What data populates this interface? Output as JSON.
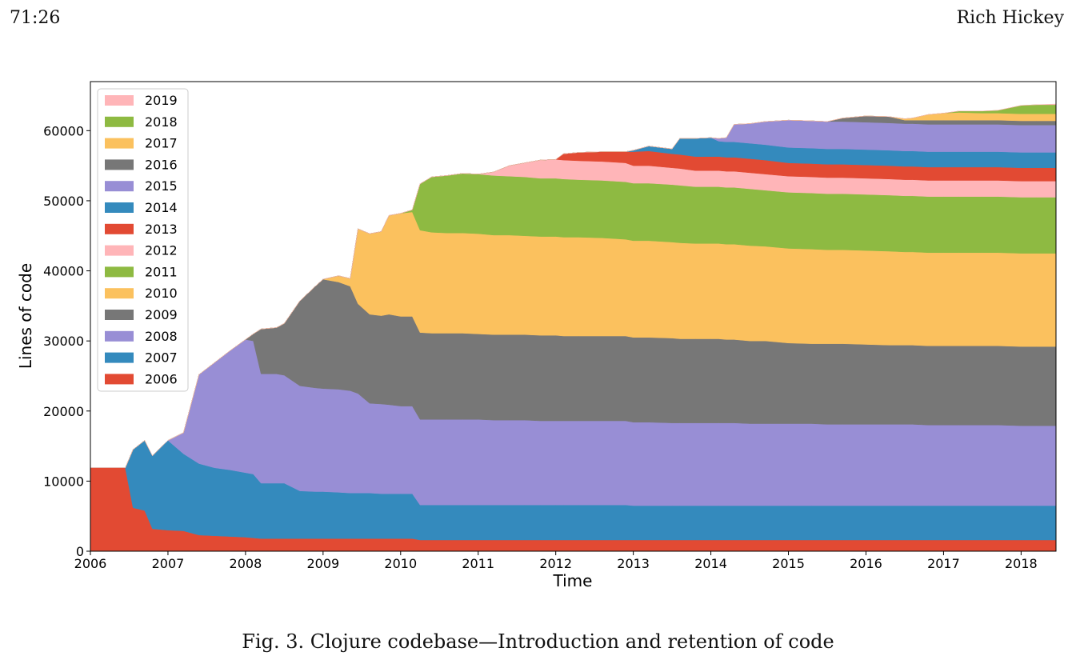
{
  "header": {
    "page_number": "71:26",
    "author": "Rich Hickey"
  },
  "caption": "Fig. 3.  Clojure codebase—Introduction and retention of code",
  "chart_data": {
    "type": "area",
    "stacked": true,
    "xlabel": "Time",
    "ylabel": "Lines of code",
    "xlim": [
      2006,
      2018.45
    ],
    "ylim": [
      0,
      67000
    ],
    "x_ticks": [
      2006,
      2007,
      2008,
      2009,
      2010,
      2011,
      2012,
      2013,
      2014,
      2015,
      2016,
      2017,
      2018
    ],
    "y_ticks": [
      0,
      10000,
      20000,
      30000,
      40000,
      50000,
      60000
    ],
    "legend_position": "top-left",
    "legend_order": [
      "2019",
      "2018",
      "2017",
      "2016",
      "2015",
      "2014",
      "2013",
      "2012",
      "2011",
      "2010",
      "2009",
      "2008",
      "2007",
      "2006"
    ],
    "x": [
      2006.0,
      2006.45,
      2006.55,
      2006.7,
      2006.8,
      2007.0,
      2007.2,
      2007.4,
      2007.6,
      2007.8,
      2008.0,
      2008.1,
      2008.2,
      2008.4,
      2008.5,
      2008.7,
      2008.9,
      2009.0,
      2009.2,
      2009.35,
      2009.45,
      2009.6,
      2009.75,
      2009.85,
      2010.0,
      2010.15,
      2010.25,
      2010.4,
      2010.6,
      2010.8,
      2011.0,
      2011.2,
      2011.4,
      2011.6,
      2011.8,
      2012.0,
      2012.1,
      2012.3,
      2012.6,
      2012.9,
      2013.0,
      2013.2,
      2013.5,
      2013.6,
      2013.8,
      2014.0,
      2014.1,
      2014.2,
      2014.3,
      2014.5,
      2014.7,
      2015.0,
      2015.3,
      2015.5,
      2015.7,
      2016.0,
      2016.3,
      2016.5,
      2016.6,
      2016.8,
      2017.0,
      2017.2,
      2017.5,
      2017.7,
      2018.0,
      2018.2,
      2018.45
    ],
    "colors": {
      "2006": "#e24a33",
      "2007": "#348abd",
      "2008": "#988ed5",
      "2009": "#777777",
      "2010": "#fbc15e",
      "2011": "#8eba42",
      "2012": "#ffb5b8",
      "2013": "#e24a33",
      "2014": "#348abd",
      "2015": "#988ed5",
      "2016": "#777777",
      "2017": "#fbc15e",
      "2018": "#8eba42",
      "2019": "#ffb5b8"
    },
    "series": [
      {
        "name": "2006",
        "values": [
          11900,
          11900,
          6200,
          5800,
          3200,
          3000,
          2900,
          2300,
          2200,
          2100,
          2000,
          1900,
          1800,
          1800,
          1800,
          1800,
          1800,
          1800,
          1800,
          1800,
          1800,
          1800,
          1800,
          1800,
          1800,
          1800,
          1600,
          1600,
          1600,
          1600,
          1600,
          1600,
          1600,
          1600,
          1600,
          1600,
          1600,
          1600,
          1600,
          1600,
          1600,
          1600,
          1600,
          1600,
          1600,
          1600,
          1600,
          1600,
          1600,
          1600,
          1600,
          1600,
          1600,
          1600,
          1600,
          1600,
          1600,
          1600,
          1600,
          1600,
          1600,
          1600,
          1600,
          1600,
          1600,
          1600,
          1600
        ]
      },
      {
        "name": "2007",
        "values": [
          0,
          0,
          8300,
          10000,
          10400,
          12800,
          11000,
          10200,
          9700,
          9500,
          9200,
          9100,
          7900,
          7900,
          7900,
          6800,
          6700,
          6700,
          6600,
          6500,
          6500,
          6500,
          6400,
          6400,
          6400,
          6400,
          5000,
          5000,
          5000,
          5000,
          5000,
          5000,
          5000,
          5000,
          5000,
          5000,
          5000,
          5000,
          5000,
          5000,
          4900,
          4900,
          4900,
          4900,
          4900,
          4900,
          4900,
          4900,
          4900,
          4900,
          4900,
          4900,
          4900,
          4900,
          4900,
          4900,
          4900,
          4900,
          4900,
          4900,
          4900,
          4900,
          4900,
          4900,
          4900,
          4900,
          4900
        ]
      },
      {
        "name": "2008",
        "values": [
          0,
          0,
          0,
          0,
          0,
          0,
          3000,
          12700,
          15000,
          17000,
          19000,
          19000,
          15600,
          15600,
          15400,
          15000,
          14800,
          14700,
          14700,
          14600,
          14200,
          12800,
          12800,
          12700,
          12500,
          12500,
          12200,
          12200,
          12200,
          12200,
          12200,
          12100,
          12100,
          12100,
          12000,
          12000,
          12000,
          12000,
          12000,
          12000,
          11900,
          11900,
          11800,
          11800,
          11800,
          11800,
          11800,
          11800,
          11800,
          11700,
          11700,
          11700,
          11700,
          11600,
          11600,
          11600,
          11600,
          11600,
          11600,
          11500,
          11500,
          11500,
          11500,
          11500,
          11400,
          11400,
          11400
        ]
      },
      {
        "name": "2009",
        "values": [
          0,
          0,
          0,
          0,
          0,
          0,
          0,
          0,
          0,
          0,
          0,
          1000,
          6400,
          6600,
          7400,
          12100,
          14500,
          15600,
          15300,
          14900,
          12800,
          12700,
          12600,
          12900,
          12800,
          12800,
          12400,
          12300,
          12300,
          12300,
          12200,
          12200,
          12200,
          12200,
          12200,
          12200,
          12100,
          12100,
          12100,
          12100,
          12100,
          12100,
          12100,
          12000,
          12000,
          12000,
          12000,
          11900,
          11900,
          11800,
          11800,
          11500,
          11400,
          11500,
          11500,
          11400,
          11300,
          11300,
          11300,
          11300,
          11300,
          11300,
          11300,
          11300,
          11300,
          11300,
          11300
        ]
      },
      {
        "name": "2010",
        "values": [
          0,
          0,
          0,
          0,
          0,
          0,
          0,
          0,
          0,
          0,
          0,
          0,
          0,
          0,
          0,
          0,
          0,
          0,
          900,
          1100,
          10700,
          11500,
          12000,
          14100,
          14700,
          14900,
          14600,
          14400,
          14300,
          14300,
          14300,
          14200,
          14200,
          14100,
          14100,
          14100,
          14100,
          14100,
          14000,
          13800,
          13800,
          13800,
          13700,
          13700,
          13600,
          13600,
          13600,
          13600,
          13600,
          13600,
          13500,
          13500,
          13500,
          13400,
          13400,
          13400,
          13400,
          13300,
          13300,
          13300,
          13300,
          13300,
          13300,
          13300,
          13300,
          13300,
          13300
        ]
      },
      {
        "name": "2011",
        "values": [
          0,
          0,
          0,
          0,
          0,
          0,
          0,
          0,
          0,
          0,
          0,
          0,
          0,
          0,
          0,
          0,
          0,
          0,
          0,
          0,
          0,
          0,
          0,
          0,
          0,
          300,
          6600,
          7900,
          8200,
          8500,
          8500,
          8500,
          8400,
          8400,
          8300,
          8300,
          8300,
          8200,
          8200,
          8200,
          8200,
          8200,
          8200,
          8200,
          8100,
          8100,
          8100,
          8100,
          8100,
          8100,
          8000,
          8000,
          8000,
          8000,
          8000,
          8000,
          8000,
          8000,
          8000,
          8000,
          8000,
          8000,
          8000,
          8000,
          8000,
          8000,
          8000
        ]
      },
      {
        "name": "2012",
        "values": [
          0,
          0,
          0,
          0,
          0,
          0,
          0,
          0,
          0,
          0,
          0,
          0,
          0,
          0,
          0,
          0,
          0,
          0,
          0,
          0,
          0,
          0,
          0,
          0,
          0,
          0,
          0,
          0,
          0,
          0,
          0,
          500,
          1500,
          2000,
          2600,
          2700,
          2700,
          2700,
          2700,
          2700,
          2500,
          2500,
          2400,
          2400,
          2300,
          2300,
          2300,
          2300,
          2300,
          2300,
          2300,
          2300,
          2300,
          2300,
          2300,
          2300,
          2300,
          2300,
          2300,
          2300,
          2300,
          2300,
          2300,
          2300,
          2300,
          2300,
          2300
        ]
      },
      {
        "name": "2013",
        "values": [
          0,
          0,
          0,
          0,
          0,
          0,
          0,
          0,
          0,
          0,
          0,
          0,
          0,
          0,
          0,
          0,
          0,
          0,
          0,
          0,
          0,
          0,
          0,
          0,
          0,
          0,
          0,
          0,
          0,
          0,
          0,
          0,
          0,
          0,
          0,
          0,
          900,
          1200,
          1400,
          1600,
          2000,
          2100,
          2000,
          2000,
          2000,
          2000,
          2000,
          2000,
          2000,
          2000,
          2000,
          1900,
          1900,
          1900,
          1900,
          1900,
          1900,
          1900,
          1900,
          1900,
          1900,
          1900,
          1900,
          1900,
          1900,
          1900,
          1900
        ]
      },
      {
        "name": "2014",
        "values": [
          0,
          0,
          0,
          0,
          0,
          0,
          0,
          0,
          0,
          0,
          0,
          0,
          0,
          0,
          0,
          0,
          0,
          0,
          0,
          0,
          0,
          0,
          0,
          0,
          0,
          0,
          0,
          0,
          0,
          0,
          0,
          0,
          0,
          0,
          0,
          0,
          0,
          0,
          0,
          0,
          200,
          700,
          700,
          2300,
          2600,
          2700,
          2200,
          2200,
          2200,
          2200,
          2200,
          2200,
          2200,
          2200,
          2200,
          2200,
          2200,
          2200,
          2200,
          2200,
          2200,
          2200,
          2200,
          2200,
          2200,
          2200,
          2200
        ]
      },
      {
        "name": "2015",
        "values": [
          0,
          0,
          0,
          0,
          0,
          0,
          0,
          0,
          0,
          0,
          0,
          0,
          0,
          0,
          0,
          0,
          0,
          0,
          0,
          0,
          0,
          0,
          0,
          0,
          0,
          0,
          0,
          0,
          0,
          0,
          0,
          0,
          0,
          0,
          0,
          0,
          0,
          0,
          0,
          0,
          0,
          0,
          0,
          0,
          0,
          0,
          400,
          600,
          2500,
          2800,
          3300,
          3900,
          3900,
          3900,
          3900,
          3900,
          3900,
          3900,
          3900,
          3900,
          3900,
          3900,
          3900,
          3900,
          3900,
          3900,
          3900
        ]
      },
      {
        "name": "2016",
        "values": [
          0,
          0,
          0,
          0,
          0,
          0,
          0,
          0,
          0,
          0,
          0,
          0,
          0,
          0,
          0,
          0,
          0,
          0,
          0,
          0,
          0,
          0,
          0,
          0,
          0,
          0,
          0,
          0,
          0,
          0,
          0,
          0,
          0,
          0,
          0,
          0,
          0,
          0,
          0,
          0,
          0,
          0,
          0,
          0,
          0,
          0,
          0,
          0,
          0,
          0,
          0,
          0,
          0,
          0,
          500,
          900,
          900,
          500,
          500,
          600,
          600,
          600,
          600,
          600,
          600,
          600,
          600
        ]
      },
      {
        "name": "2017",
        "values": [
          0,
          0,
          0,
          0,
          0,
          0,
          0,
          0,
          0,
          0,
          0,
          0,
          0,
          0,
          0,
          0,
          0,
          0,
          0,
          0,
          0,
          0,
          0,
          0,
          0,
          0,
          0,
          0,
          0,
          0,
          0,
          0,
          0,
          0,
          0,
          0,
          0,
          0,
          0,
          0,
          0,
          0,
          0,
          0,
          0,
          0,
          0,
          0,
          0,
          0,
          0,
          0,
          0,
          0,
          0,
          0,
          0,
          200,
          300,
          800,
          1000,
          1100,
          1000,
          1000,
          1000,
          1000,
          1000
        ]
      },
      {
        "name": "2018",
        "values": [
          0,
          0,
          0,
          0,
          0,
          0,
          0,
          0,
          0,
          0,
          0,
          0,
          0,
          0,
          0,
          0,
          0,
          0,
          0,
          0,
          0,
          0,
          0,
          0,
          0,
          0,
          0,
          0,
          0,
          0,
          0,
          0,
          0,
          0,
          0,
          0,
          0,
          0,
          0,
          0,
          0,
          0,
          0,
          0,
          0,
          0,
          0,
          0,
          0,
          0,
          0,
          0,
          0,
          0,
          0,
          0,
          0,
          0,
          0,
          0,
          0,
          200,
          300,
          400,
          1200,
          1300,
          1300
        ]
      },
      {
        "name": "2019",
        "values": [
          0,
          0,
          0,
          0,
          0,
          0,
          0,
          0,
          0,
          0,
          0,
          0,
          0,
          0,
          0,
          0,
          0,
          0,
          0,
          0,
          0,
          0,
          0,
          0,
          0,
          0,
          0,
          0,
          0,
          0,
          0,
          0,
          0,
          0,
          0,
          0,
          0,
          0,
          0,
          0,
          0,
          0,
          0,
          0,
          0,
          0,
          0,
          0,
          0,
          0,
          0,
          0,
          0,
          0,
          0,
          0,
          0,
          0,
          0,
          0,
          0,
          0,
          0,
          0,
          0,
          0,
          100
        ]
      }
    ]
  }
}
